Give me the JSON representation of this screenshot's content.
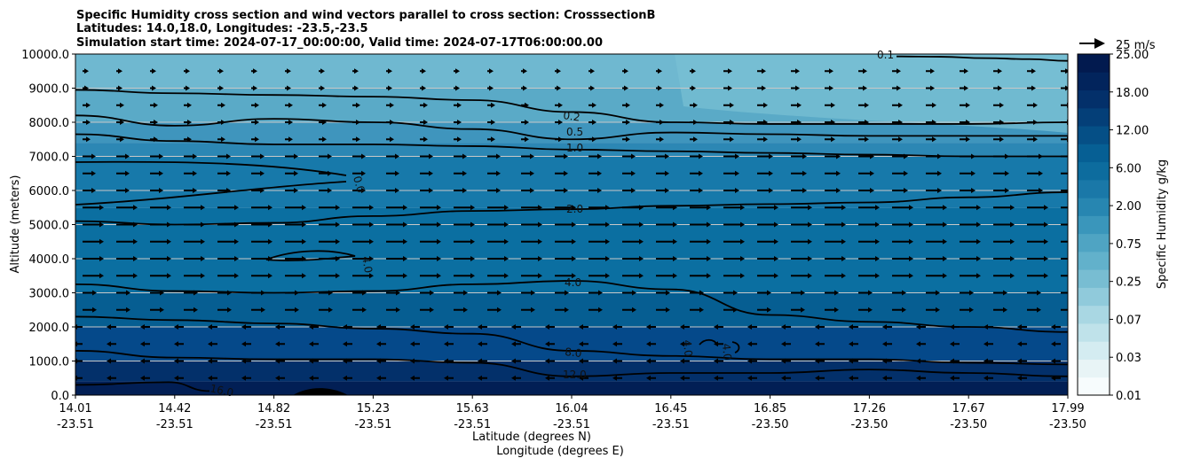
{
  "chart_data": {
    "type": "heatmap",
    "title_lines": [
      "Specific Humidity cross section and wind vectors parallel to cross section: CrosssectionB",
      "Latitudes: 14.0,18.0, Longitudes: -23.5,-23.5",
      "Simulation start time: 2024-07-17_00:00:00, Valid time: 2024-07-17T06:00:00.00"
    ],
    "ylabel": "Altitude (meters)",
    "xlabel_lines": [
      "Latitude (degrees N)",
      "Longitude (degrees E)"
    ],
    "ylim": [
      0,
      10000
    ],
    "yticks": [
      "0.0",
      "1000.0",
      "2000.0",
      "3000.0",
      "4000.0",
      "5000.0",
      "6000.0",
      "7000.0",
      "8000.0",
      "9000.0",
      "10000.0"
    ],
    "xticks": [
      {
        "lat": "14.01",
        "lon": "-23.51"
      },
      {
        "lat": "14.42",
        "lon": "-23.51"
      },
      {
        "lat": "14.82",
        "lon": "-23.51"
      },
      {
        "lat": "15.23",
        "lon": "-23.51"
      },
      {
        "lat": "15.63",
        "lon": "-23.51"
      },
      {
        "lat": "16.04",
        "lon": "-23.51"
      },
      {
        "lat": "16.45",
        "lon": "-23.51"
      },
      {
        "lat": "16.85",
        "lon": "-23.50"
      },
      {
        "lat": "17.26",
        "lon": "-23.50"
      },
      {
        "lat": "17.67",
        "lon": "-23.50"
      },
      {
        "lat": "17.99",
        "lon": "-23.50"
      }
    ],
    "colorbar": {
      "label": "Specific Humidity g/kg",
      "levels": [
        0.01,
        0.02,
        0.03,
        0.05,
        0.07,
        0.1,
        0.25,
        0.5,
        0.75,
        1.0,
        2.0,
        3.0,
        6.0,
        9.0,
        12.0,
        15.0,
        18.0,
        21.0,
        25.0
      ],
      "tick_labels": [
        "0.01",
        "0.03",
        "0.07",
        "0.25",
        "0.75",
        "2.00",
        "6.00",
        "12.00",
        "18.00",
        "25.00"
      ],
      "colors": [
        "#f7fcfd",
        "#e8f4f6",
        "#d4ecf1",
        "#bfe2ea",
        "#a9d7e3",
        "#90cadb",
        "#78bdd2",
        "#62b1cb",
        "#4fa4c3",
        "#3a96bb",
        "#2786b1",
        "#1a78a8",
        "#0d6c9e",
        "#065f94",
        "#054f86",
        "#043f78",
        "#03306a",
        "#02245c",
        "#021a4f"
      ]
    },
    "wind_reference": {
      "label": "25 m/s",
      "speed": 25
    },
    "contours": [
      {
        "label": "0.1",
        "altitude": [
          9930,
          9920,
          9880,
          9850,
          9800
        ]
      },
      {
        "label": "0.2",
        "altitude": [
          8950,
          8850,
          8800,
          8750,
          8650,
          8300,
          8000,
          7950,
          7950,
          7950,
          8000
        ]
      },
      {
        "label": "0.5",
        "altitude": [
          8200,
          7900,
          8100,
          8000,
          7800,
          7500,
          7700,
          7650,
          7600,
          7600,
          7600
        ]
      },
      {
        "label": "1.0",
        "altitude": [
          7650,
          7450,
          7350,
          7350,
          7300,
          7200,
          7150,
          7100,
          7050,
          7000,
          7000
        ]
      },
      {
        "label": "2.0",
        "altitude": [
          5100,
          5000,
          5050,
          5250,
          5400,
          5450,
          5550,
          5600,
          5650,
          5800,
          5950
        ]
      },
      {
        "label": "4.0",
        "altitude": [
          3250,
          3050,
          3000,
          3050,
          3250,
          3350,
          3100,
          2350,
          2150,
          2000,
          1850
        ]
      },
      {
        "label": "8.0",
        "altitude": [
          2300,
          2200,
          2100,
          1950,
          1800,
          1300,
          1150,
          1050,
          1050,
          950,
          900
        ]
      },
      {
        "label": "12.0",
        "altitude": [
          1300,
          1100,
          1050,
          1050,
          950,
          550,
          650,
          650,
          750,
          650,
          550
        ]
      },
      {
        "label": "16.0",
        "altitude": [
          300,
          350,
          0
        ]
      }
    ],
    "extra_contour_labels": [
      "0.0",
      "4.0",
      "4.0",
      "4.0"
    ]
  }
}
